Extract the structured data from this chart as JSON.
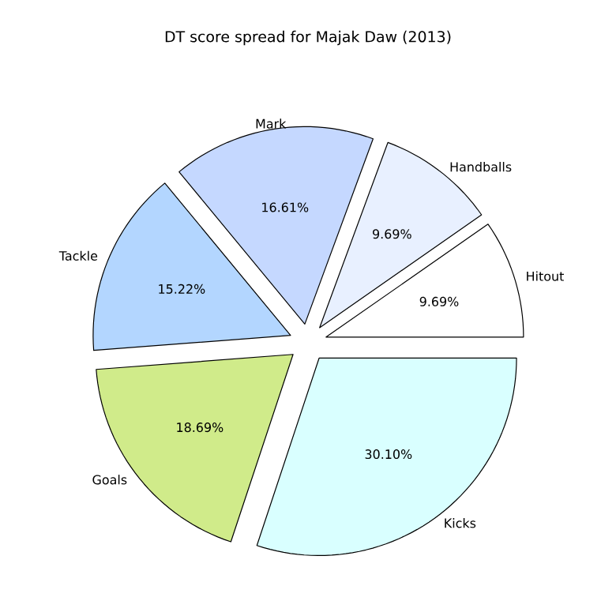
{
  "chart_data": {
    "type": "pie",
    "title": "DT score spread for Majak Daw (2013)",
    "categories": [
      "Hitout",
      "Handballs",
      "Mark",
      "Tackle",
      "Goals",
      "Kicks"
    ],
    "values": [
      9.69,
      9.69,
      16.61,
      15.22,
      18.69,
      30.1
    ],
    "value_labels": [
      "9.69%",
      "9.69%",
      "16.61%",
      "15.22%",
      "18.69%",
      "30.10%"
    ],
    "colors": [
      "#ffffff",
      "#e8f0ff",
      "#c5d8ff",
      "#b3d6ff",
      "#d0eb8a",
      "#d9ffff"
    ]
  }
}
